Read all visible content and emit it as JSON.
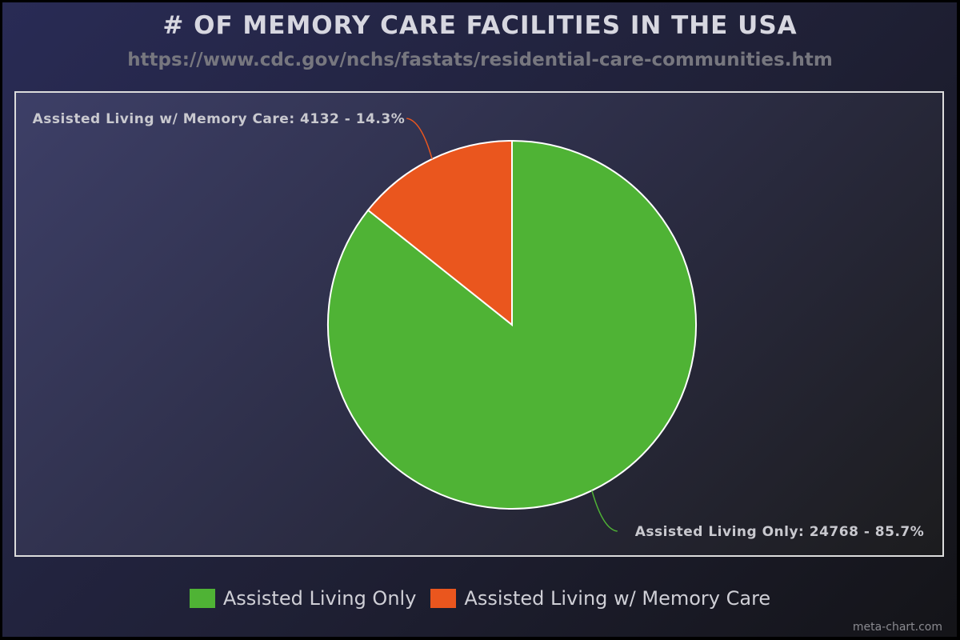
{
  "title": "# OF MEMORY CARE FACILITIES IN THE USA",
  "subtitle": "https://www.cdc.gov/nchs/fastats/residential-care-communities.htm",
  "credit": "meta-chart.com",
  "chart_data": {
    "type": "pie",
    "slices": [
      {
        "label": "Assisted Living Only",
        "value": 24768,
        "percent": "85.7%",
        "color": "#4fb335"
      },
      {
        "label": "Assisted Living w/ Memory Care",
        "value": 4132,
        "percent": "14.3%",
        "color": "#ea561e"
      }
    ],
    "start_angle": "12 o'clock",
    "direction": "clockwise",
    "legend_position": "bottom-center"
  }
}
